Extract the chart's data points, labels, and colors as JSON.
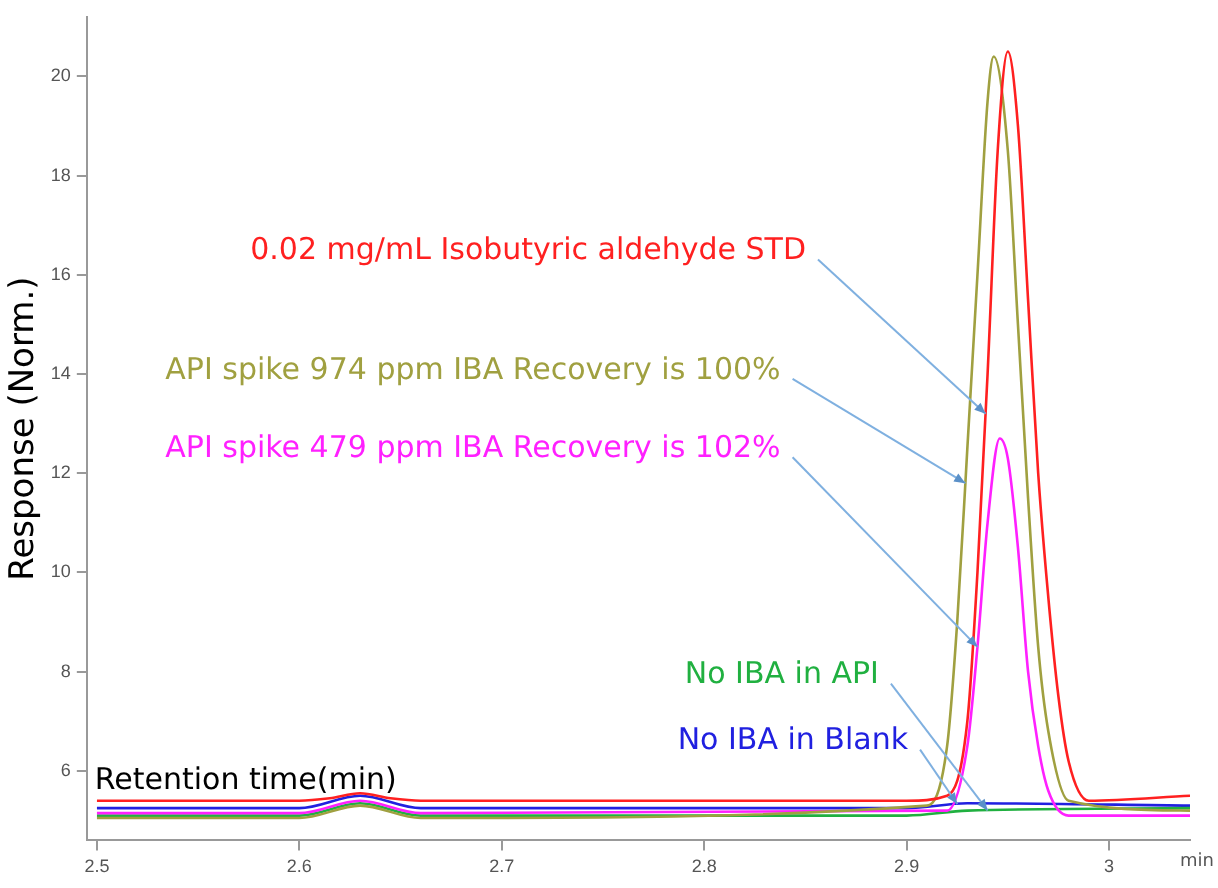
{
  "chart_data": {
    "type": "line",
    "ylabel": "Response (Norm.)",
    "xlabel": "Retention time(min)",
    "xlim": [
      2.495,
      3.04
    ],
    "xticks": [
      {
        "value": 2.5,
        "label": "2.5"
      },
      {
        "value": 2.6,
        "label": "2.6"
      },
      {
        "value": 2.7,
        "label": "2.7"
      },
      {
        "value": 2.8,
        "label": "2.8"
      },
      {
        "value": 2.9,
        "label": "2.9"
      },
      {
        "value": 3,
        "label": "3"
      }
    ],
    "ylim": [
      4.6,
      21.2
    ],
    "yticks": [
      6,
      8,
      10,
      12,
      14,
      16,
      18,
      20
    ],
    "grid": false,
    "legend": false,
    "marker": "none",
    "annotations": [
      "min"
    ],
    "series": [
      {
        "name": "0.02 mg/mL Isobutyric aldehyde STD",
        "color": "#ff2020",
        "x": [
          2.5,
          2.6,
          2.615,
          2.63,
          2.645,
          2.66,
          2.9,
          2.92,
          2.93,
          2.935,
          2.94,
          2.945,
          2.95,
          2.955,
          2.96,
          2.965,
          2.97,
          2.975,
          2.98,
          2.99,
          3.04
        ],
        "values": [
          5.4,
          5.4,
          5.45,
          5.55,
          5.45,
          5.4,
          5.4,
          5.5,
          7,
          10,
          14,
          18.5,
          20.5,
          19,
          15.5,
          12,
          9.5,
          7.5,
          6.2,
          5.4,
          5.5
        ]
      },
      {
        "name": "API spike 974 ppm IBA Recovery is 100%",
        "color": "#a0a040",
        "x": [
          2.5,
          2.6,
          2.63,
          2.66,
          2.91,
          2.92,
          2.925,
          2.93,
          2.935,
          2.94,
          2.943,
          2.95,
          2.955,
          2.96,
          2.965,
          2.97,
          2.98,
          3.04
        ],
        "values": [
          5.05,
          5.05,
          5.3,
          5.05,
          5.3,
          6.5,
          9,
          12.5,
          16,
          19.5,
          20.4,
          18.5,
          15,
          11.5,
          8.5,
          6.8,
          5.4,
          5.2
        ]
      },
      {
        "name": "API spike 479 ppm IBA Recovery is 102%",
        "color": "#ff20ff",
        "x": [
          2.5,
          2.6,
          2.63,
          2.66,
          2.92,
          2.93,
          2.935,
          2.94,
          2.946,
          2.95,
          2.955,
          2.96,
          2.965,
          2.97,
          2.98,
          3.04
        ],
        "values": [
          5.15,
          5.15,
          5.4,
          5.15,
          5.2,
          6.5,
          8.5,
          11,
          12.7,
          12.3,
          10.5,
          8,
          6.5,
          5.6,
          5.1,
          5.1
        ]
      },
      {
        "name": "No IBA in API",
        "color": "#20b040",
        "x": [
          2.5,
          2.6,
          2.63,
          2.66,
          2.9,
          2.93,
          3.04
        ],
        "values": [
          5.1,
          5.1,
          5.35,
          5.1,
          5.1,
          5.2,
          5.25
        ]
      },
      {
        "name": "No IBA in Blank",
        "color": "#2020e0",
        "x": [
          2.5,
          2.6,
          2.63,
          2.66,
          2.9,
          2.93,
          3.04
        ],
        "values": [
          5.25,
          5.25,
          5.5,
          5.25,
          5.25,
          5.35,
          5.3
        ]
      }
    ]
  }
}
